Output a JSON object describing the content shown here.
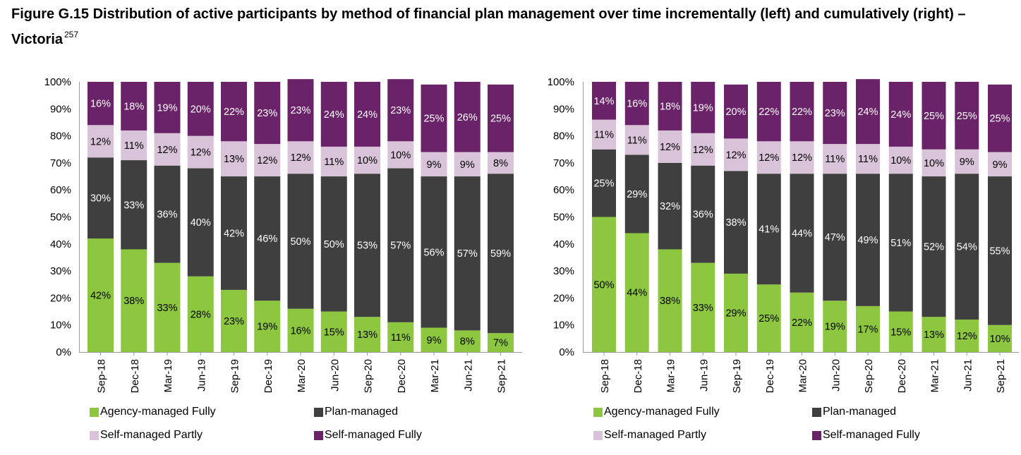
{
  "title": {
    "text": "Figure G.15 Distribution of active participants by method of financial plan management over time incrementally (left) and cumulatively (right) – Victoria",
    "footnote": "257"
  },
  "colors": {
    "agency": "#8dc63f",
    "plan": "#3f3f3f",
    "self_partly": "#d9c3d9",
    "self_fully": "#6a2268",
    "axis": "#999999"
  },
  "legend": {
    "agency": "Agency-managed Fully",
    "plan": "Plan-managed",
    "self_partly": "Self-managed Partly",
    "self_fully": "Self-managed Fully"
  },
  "chart_data": [
    {
      "type": "bar",
      "stacked": true,
      "categories": [
        "Sep-18",
        "Dec-18",
        "Mar-19",
        "Jun-19",
        "Sep-19",
        "Dec-19",
        "Mar-20",
        "Jun-20",
        "Sep-20",
        "Dec-20",
        "Mar-21",
        "Jun-21",
        "Sep-21"
      ],
      "y_ticks": [
        "0%",
        "10%",
        "20%",
        "30%",
        "40%",
        "50%",
        "60%",
        "70%",
        "80%",
        "90%",
        "100%"
      ],
      "ylim": [
        0,
        100
      ],
      "legend_position": "bottom",
      "series": [
        {
          "name": "Agency-managed Fully",
          "values": [
            42,
            38,
            33,
            28,
            23,
            19,
            16,
            15,
            13,
            11,
            9,
            8,
            7
          ],
          "labels": [
            "42%",
            "38%",
            "33%",
            "28%",
            "23%",
            "19%",
            "16%",
            "15%",
            "13%",
            "11%",
            "9%",
            "8%",
            "7%"
          ]
        },
        {
          "name": "Plan-managed",
          "values": [
            30,
            33,
            36,
            40,
            42,
            46,
            50,
            50,
            53,
            57,
            56,
            57,
            59
          ],
          "labels": [
            "30%",
            "33%",
            "36%",
            "40%",
            "42%",
            "46%",
            "50%",
            "50%",
            "53%",
            "57%",
            "56%",
            "57%",
            "59%"
          ]
        },
        {
          "name": "Self-managed Partly",
          "values": [
            12,
            11,
            12,
            12,
            13,
            12,
            12,
            11,
            10,
            10,
            9,
            9,
            8
          ],
          "labels": [
            "12%",
            "11%",
            "12%",
            "12%",
            "13%",
            "12%",
            "12%",
            "11%",
            "10%",
            "10%",
            "9%",
            "9%",
            "8%"
          ]
        },
        {
          "name": "Self-managed Fully",
          "values": [
            16,
            18,
            19,
            20,
            22,
            23,
            23,
            24,
            24,
            23,
            25,
            26,
            25
          ],
          "labels": [
            "16%",
            "18%",
            "19%",
            "20%",
            "22%",
            "23%",
            "23%",
            "24%",
            "24%",
            "23%",
            "25%",
            "26%",
            "25%"
          ]
        }
      ]
    },
    {
      "type": "bar",
      "stacked": true,
      "categories": [
        "Sep-18",
        "Dec-18",
        "Mar-19",
        "Jun-19",
        "Sep-19",
        "Dec-19",
        "Mar-20",
        "Jun-20",
        "Sep-20",
        "Dec-20",
        "Mar-21",
        "Jun-21",
        "Sep-21"
      ],
      "y_ticks": [
        "0%",
        "10%",
        "20%",
        "30%",
        "40%",
        "50%",
        "60%",
        "70%",
        "80%",
        "90%",
        "100%"
      ],
      "ylim": [
        0,
        100
      ],
      "legend_position": "bottom",
      "series": [
        {
          "name": "Agency-managed Fully",
          "values": [
            50,
            44,
            38,
            33,
            29,
            25,
            22,
            19,
            17,
            15,
            13,
            12,
            10
          ],
          "labels": [
            "50%",
            "44%",
            "38%",
            "33%",
            "29%",
            "25%",
            "22%",
            "19%",
            "17%",
            "15%",
            "13%",
            "12%",
            "10%"
          ]
        },
        {
          "name": "Plan-managed",
          "values": [
            25,
            29,
            32,
            36,
            38,
            41,
            44,
            47,
            49,
            51,
            52,
            54,
            55
          ],
          "labels": [
            "25%",
            "29%",
            "32%",
            "36%",
            "38%",
            "41%",
            "44%",
            "47%",
            "49%",
            "51%",
            "52%",
            "54%",
            "55%"
          ]
        },
        {
          "name": "Self-managed Partly",
          "values": [
            11,
            11,
            12,
            12,
            12,
            12,
            12,
            11,
            11,
            10,
            10,
            9,
            9
          ],
          "labels": [
            "11%",
            "11%",
            "12%",
            "12%",
            "12%",
            "12%",
            "12%",
            "11%",
            "11%",
            "10%",
            "10%",
            "9%",
            "9%"
          ]
        },
        {
          "name": "Self-managed Fully",
          "values": [
            14,
            16,
            18,
            19,
            20,
            22,
            22,
            23,
            24,
            24,
            25,
            25,
            25
          ],
          "labels": [
            "14%",
            "16%",
            "18%",
            "19%",
            "20%",
            "22%",
            "22%",
            "23%",
            "24%",
            "24%",
            "25%",
            "25%",
            "25%"
          ]
        }
      ]
    }
  ]
}
